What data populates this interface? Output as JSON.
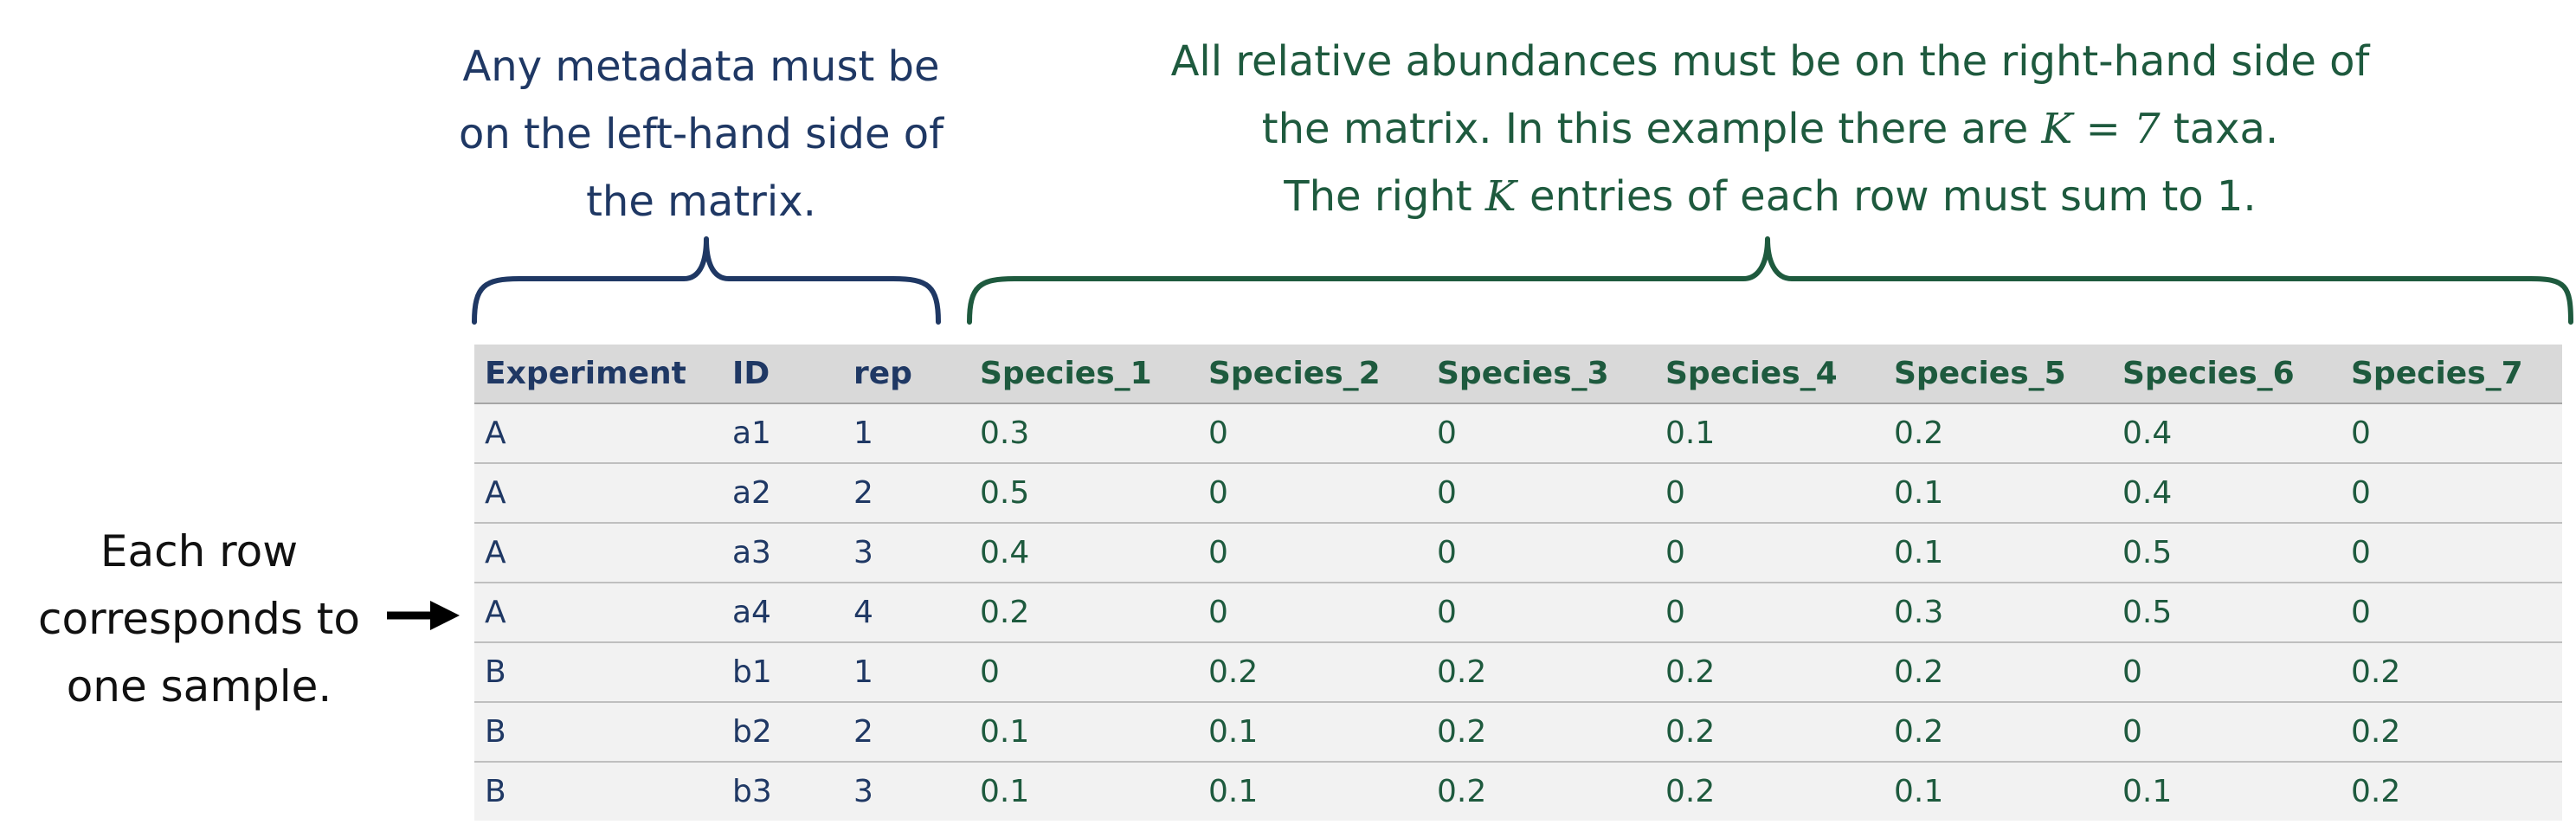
{
  "captions": {
    "metadata": [
      "Any metadata must be",
      "on the left-hand side of",
      "the matrix."
    ],
    "abundance": {
      "line1": "All relative abundances must be on the right-hand side of",
      "line2_prefix": "the matrix. In this example there are ",
      "line2_math": "K = 7",
      "line2_suffix": " taxa.",
      "line3_prefix": "The right ",
      "line3_math": "K",
      "line3_suffix": " entries of each row must sum to 1."
    },
    "row": [
      "Each row",
      "corresponds to",
      "one sample."
    ]
  },
  "colors": {
    "metadata": "#1f3864",
    "abundance": "#1e5a3e",
    "header_bg": "#d9d9d9",
    "row_bg": "#f2f2f2"
  },
  "table": {
    "metadata_columns": [
      "Experiment",
      "ID",
      "rep"
    ],
    "abundance_columns": [
      "Species_1",
      "Species_2",
      "Species_3",
      "Species_4",
      "Species_5",
      "Species_6",
      "Species_7"
    ],
    "rows": [
      {
        "meta": [
          "A",
          "a1",
          "1"
        ],
        "values": [
          "0.3",
          "0",
          "0",
          "0.1",
          "0.2",
          "0.4",
          "0"
        ]
      },
      {
        "meta": [
          "A",
          "a2",
          "2"
        ],
        "values": [
          "0.5",
          "0",
          "0",
          "0",
          "0.1",
          "0.4",
          "0"
        ]
      },
      {
        "meta": [
          "A",
          "a3",
          "3"
        ],
        "values": [
          "0.4",
          "0",
          "0",
          "0",
          "0.1",
          "0.5",
          "0"
        ]
      },
      {
        "meta": [
          "A",
          "a4",
          "4"
        ],
        "values": [
          "0.2",
          "0",
          "0",
          "0",
          "0.3",
          "0.5",
          "0"
        ]
      },
      {
        "meta": [
          "B",
          "b1",
          "1"
        ],
        "values": [
          "0",
          "0.2",
          "0.2",
          "0.2",
          "0.2",
          "0",
          "0.2"
        ]
      },
      {
        "meta": [
          "B",
          "b2",
          "2"
        ],
        "values": [
          "0.1",
          "0.1",
          "0.2",
          "0.2",
          "0.2",
          "0",
          "0.2"
        ]
      },
      {
        "meta": [
          "B",
          "b3",
          "3"
        ],
        "values": [
          "0.1",
          "0.1",
          "0.2",
          "0.2",
          "0.1",
          "0.1",
          "0.2"
        ]
      }
    ]
  }
}
